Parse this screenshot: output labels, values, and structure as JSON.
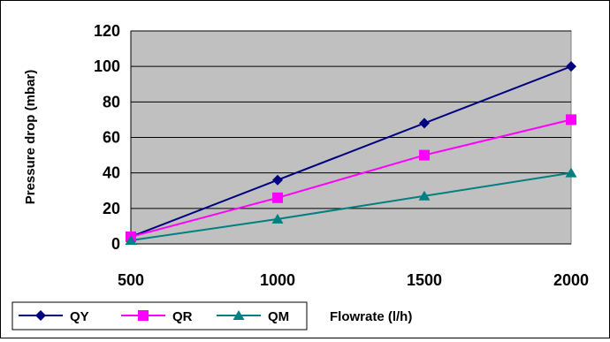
{
  "chart_data": {
    "type": "line",
    "title": "",
    "xlabel": "Flowrate (l/h)",
    "ylabel": "Pressure drop (mbar)",
    "x": [
      500,
      1000,
      1500,
      2000
    ],
    "xticks": [
      "500",
      "1000",
      "1500",
      "2000"
    ],
    "xlim": [
      500,
      2000
    ],
    "ylim": [
      0,
      120
    ],
    "yticks": [
      "0",
      "20",
      "40",
      "60",
      "80",
      "100",
      "120"
    ],
    "grid": "horizontal",
    "plot_background": "#c0c0c0",
    "legend_position": "bottom-left",
    "series": [
      {
        "name": "QY",
        "values": [
          4,
          36,
          68,
          100
        ],
        "color": "#000080",
        "marker": "diamond"
      },
      {
        "name": "QR",
        "values": [
          4,
          26,
          50,
          70
        ],
        "color": "#ff00ff",
        "marker": "square"
      },
      {
        "name": "QM",
        "values": [
          2,
          14,
          27,
          40
        ],
        "color": "#008080",
        "marker": "triangle"
      }
    ]
  }
}
